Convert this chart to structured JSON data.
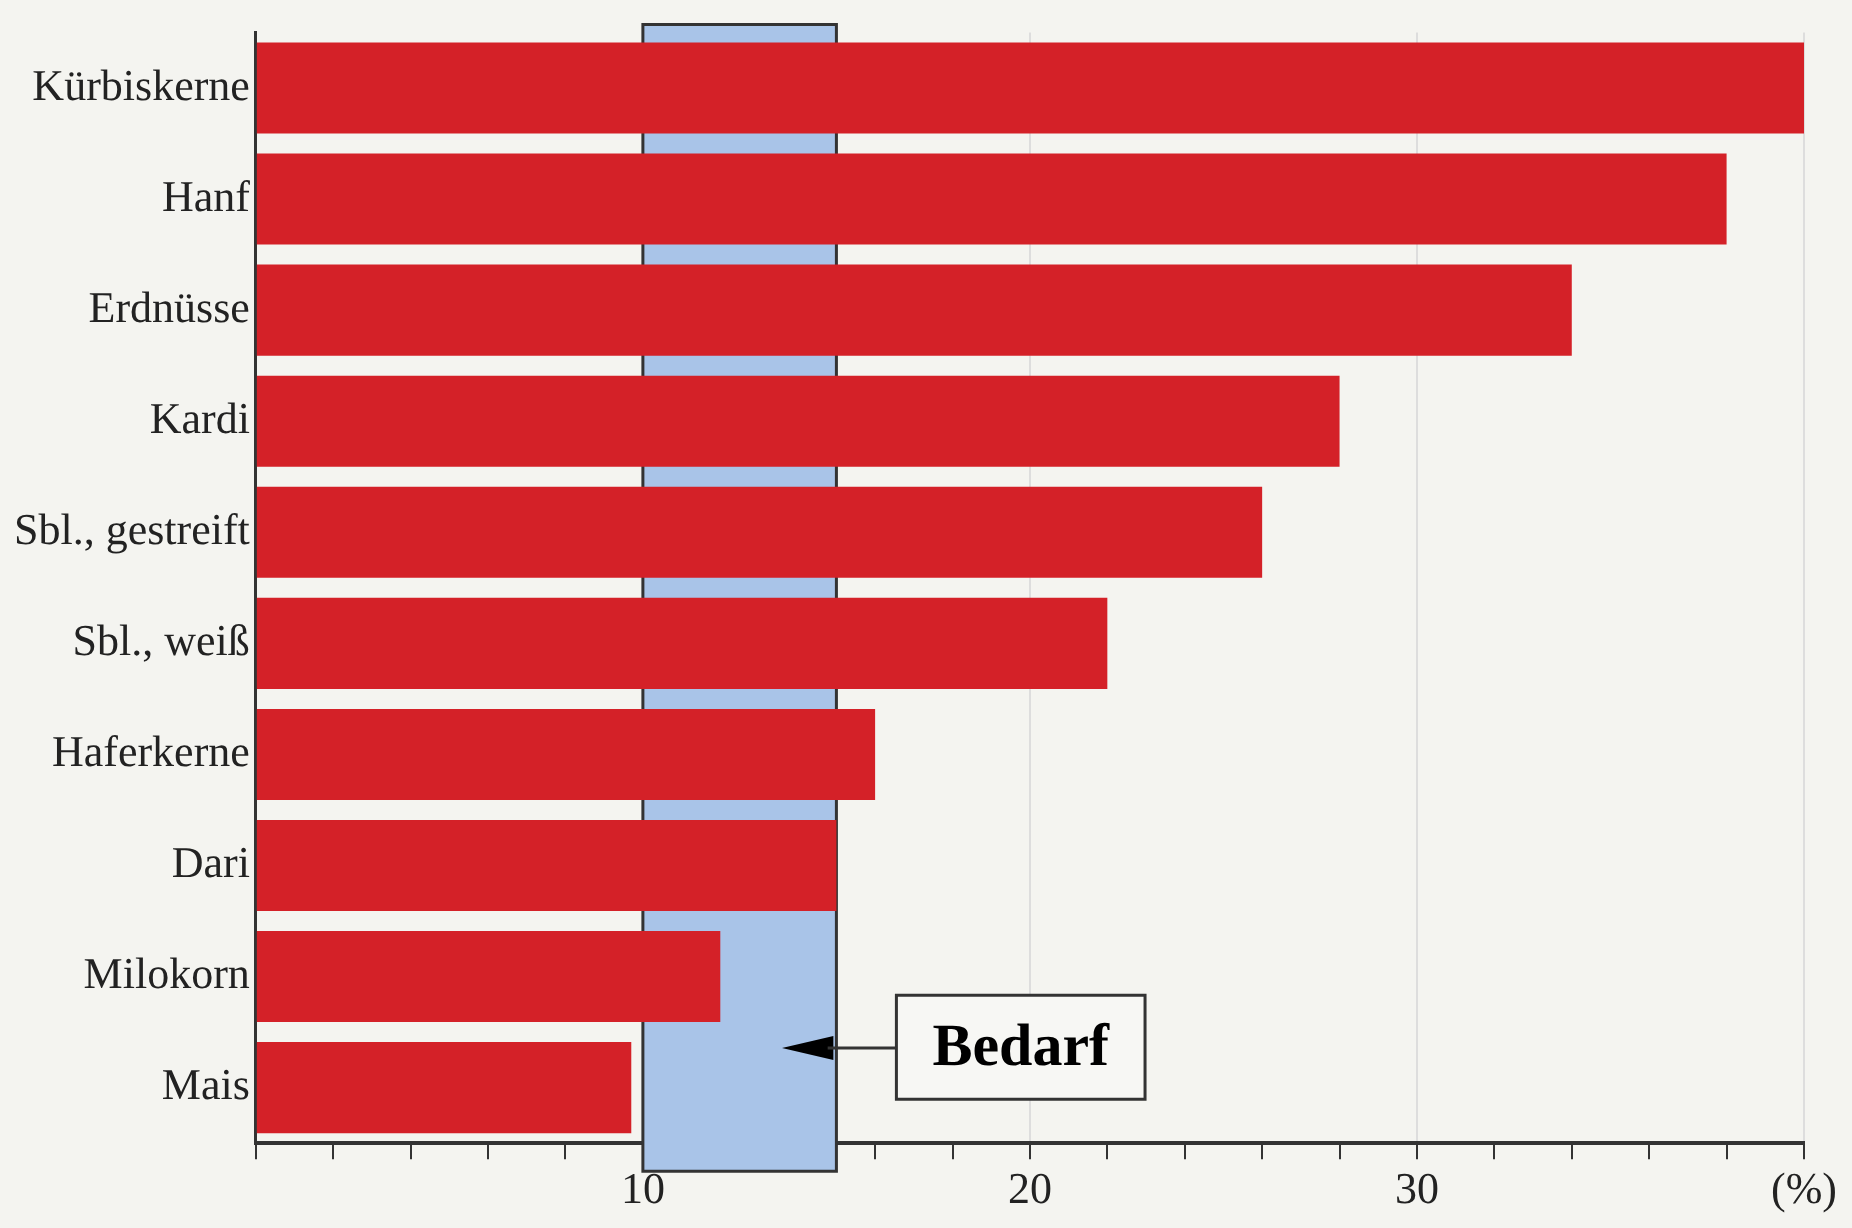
{
  "chart_data": {
    "type": "bar",
    "orientation": "horizontal",
    "categories": [
      "Kürbiskerne",
      "Hanf",
      "Erdnüsse",
      "Kardi",
      "Sbl., gestreift",
      "Sbl., weiß",
      "Haferkerne",
      "Dari",
      "Milokorn",
      "Mais"
    ],
    "values": [
      40,
      38,
      34,
      28,
      26,
      22,
      16,
      15,
      12,
      9.7
    ],
    "color": "#d42128",
    "xlim": [
      0,
      40
    ],
    "xticks": [
      {
        "value": 0,
        "label": null
      },
      {
        "value": 2,
        "label": null
      },
      {
        "value": 4,
        "label": null
      },
      {
        "value": 6,
        "label": null
      },
      {
        "value": 8,
        "label": null
      },
      10,
      {
        "value": 12,
        "label": null
      },
      {
        "value": 14,
        "label": null
      },
      {
        "value": 16,
        "label": null
      },
      {
        "value": 18,
        "label": null
      },
      20,
      {
        "value": 22,
        "label": null
      },
      {
        "value": 24,
        "label": null
      },
      {
        "value": 26,
        "label": null
      },
      {
        "value": 28,
        "label": null
      },
      30,
      {
        "value": 32,
        "label": null
      },
      {
        "value": 34,
        "label": null
      },
      {
        "value": 36,
        "label": null
      },
      {
        "value": 38,
        "label": null
      },
      {
        "value": 40,
        "label": "(%)"
      }
    ],
    "grid": "x",
    "bands": [
      {
        "axis": "x",
        "from": 10,
        "to": 15,
        "label": "Bedarf",
        "color": "#a9c4e8"
      }
    ]
  }
}
